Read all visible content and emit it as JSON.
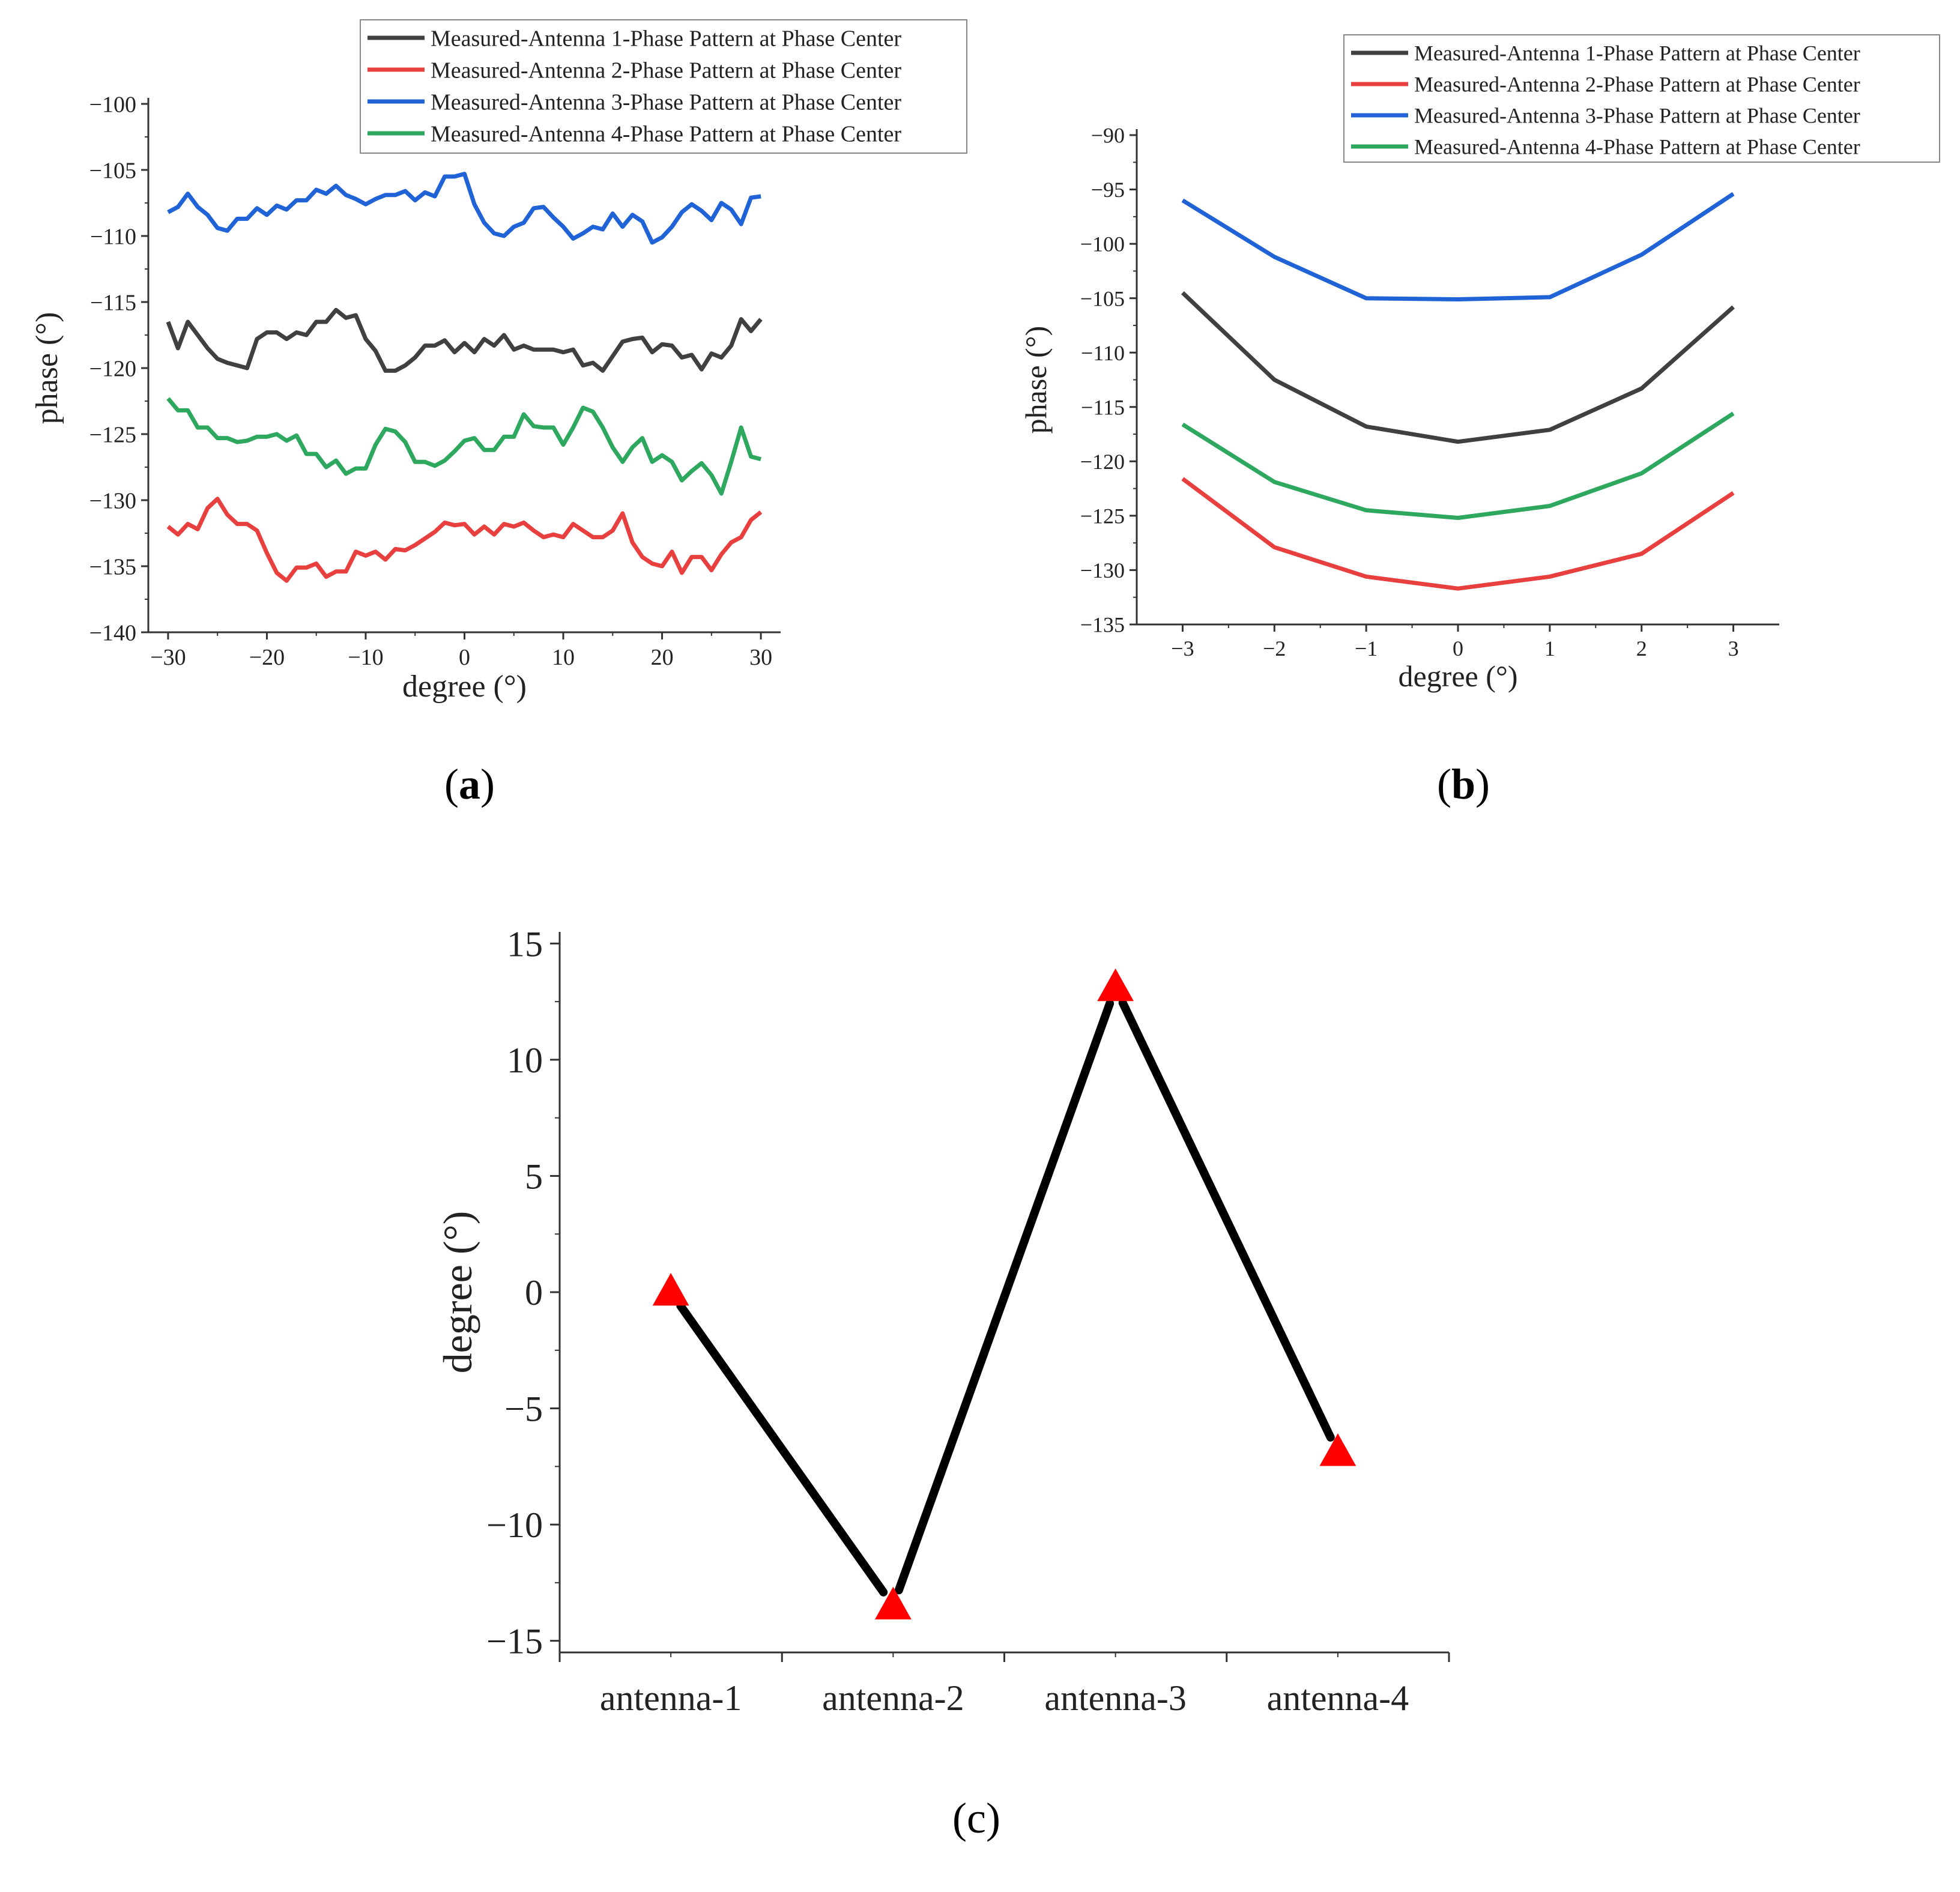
{
  "panel_labels": {
    "a": "a",
    "b": "b",
    "c": "c"
  },
  "colors": {
    "antenna1": "#404040",
    "antenna2": "#e8403f",
    "antenna3": "#1f63d6",
    "antenna4": "#2ea85e",
    "marker": "#ff0000",
    "line_c": "#000000"
  },
  "chart_data": [
    {
      "id": "a",
      "type": "line",
      "title": "",
      "xlabel": "degree (°)",
      "ylabel": "phase (°)",
      "xlim": [
        -32,
        32
      ],
      "ylim": [
        -140,
        -100
      ],
      "xticks": [
        -30,
        -20,
        -10,
        0,
        10,
        20,
        30
      ],
      "xtick_labels": [
        "−30",
        "−20",
        "−10",
        "0",
        "10",
        "20",
        "30"
      ],
      "yticks": [
        -100,
        -105,
        -110,
        -115,
        -120,
        -125,
        -130,
        -135,
        -140
      ],
      "ytick_labels": [
        "−100",
        "−105",
        "−110",
        "−115",
        "−120",
        "−125",
        "−130",
        "−135",
        "−140"
      ],
      "legend_position": "top-right",
      "x": [
        -30,
        -29,
        -28,
        -27,
        -26,
        -25,
        -24,
        -23,
        -22,
        -21,
        -20,
        -19,
        -18,
        -17,
        -16,
        -15,
        -14,
        -13,
        -12,
        -11,
        -10,
        -9,
        -8,
        -7,
        -6,
        -5,
        -4,
        -3,
        -2,
        -1,
        0,
        1,
        2,
        3,
        4,
        5,
        6,
        7,
        8,
        9,
        10,
        11,
        12,
        13,
        14,
        15,
        16,
        17,
        18,
        19,
        20,
        21,
        22,
        23,
        24,
        25,
        26,
        27,
        28,
        29,
        30
      ],
      "series": [
        {
          "name": "Measured-Antenna 1-Phase Pattern at Phase Center",
          "color": "#404040",
          "values": [
            -116.5,
            -118.5,
            -116.5,
            -117.5,
            -118.5,
            -119.3,
            -119.6,
            -119.8,
            -120.0,
            -117.8,
            -117.3,
            -117.3,
            -117.8,
            -117.3,
            -117.5,
            -116.5,
            -116.5,
            -115.6,
            -116.2,
            -116.0,
            -117.8,
            -118.7,
            -120.2,
            -120.2,
            -119.8,
            -119.2,
            -118.3,
            -118.3,
            -117.9,
            -118.8,
            -118.1,
            -118.8,
            -117.8,
            -118.3,
            -117.5,
            -118.6,
            -118.3,
            -118.6,
            -118.6,
            -118.6,
            -118.8,
            -118.6,
            -119.8,
            -119.6,
            -120.2,
            -119.1,
            -118.0,
            -117.8,
            -117.7,
            -118.8,
            -118.2,
            -118.3,
            -119.2,
            -119.0,
            -120.1,
            -118.9,
            -119.2,
            -118.3,
            -116.3,
            -117.2,
            -116.3
          ]
        },
        {
          "name": "Measured-Antenna 2-Phase Pattern at Phase Center",
          "color": "#e8403f",
          "values": [
            -132.0,
            -132.6,
            -131.8,
            -132.2,
            -130.6,
            -129.9,
            -131.1,
            -131.8,
            -131.8,
            -132.3,
            -134.0,
            -135.5,
            -136.1,
            -135.1,
            -135.1,
            -134.8,
            -135.8,
            -135.4,
            -135.4,
            -133.9,
            -134.2,
            -133.9,
            -134.5,
            -133.7,
            -133.8,
            -133.4,
            -132.9,
            -132.4,
            -131.7,
            -131.9,
            -131.8,
            -132.6,
            -132.0,
            -132.6,
            -131.8,
            -132.0,
            -131.7,
            -132.3,
            -132.8,
            -132.6,
            -132.8,
            -131.8,
            -132.3,
            -132.8,
            -132.8,
            -132.3,
            -131.0,
            -133.2,
            -134.3,
            -134.8,
            -135.0,
            -133.9,
            -135.5,
            -134.3,
            -134.3,
            -135.3,
            -134.1,
            -133.2,
            -132.8,
            -131.5,
            -130.9
          ]
        },
        {
          "name": "Measured-Antenna 3-Phase Pattern at Phase Center",
          "color": "#1f63d6",
          "values": [
            -108.2,
            -107.8,
            -106.8,
            -107.8,
            -108.4,
            -109.4,
            -109.6,
            -108.7,
            -108.7,
            -107.9,
            -108.4,
            -107.7,
            -108.0,
            -107.3,
            -107.3,
            -106.5,
            -106.8,
            -106.2,
            -106.9,
            -107.2,
            -107.6,
            -107.2,
            -106.9,
            -106.9,
            -106.6,
            -107.3,
            -106.7,
            -107.0,
            -105.5,
            -105.5,
            -105.3,
            -107.6,
            -109.0,
            -109.8,
            -110.0,
            -109.3,
            -109.0,
            -107.9,
            -107.8,
            -108.6,
            -109.3,
            -110.2,
            -109.8,
            -109.3,
            -109.5,
            -108.3,
            -109.3,
            -108.4,
            -108.9,
            -110.5,
            -110.1,
            -109.3,
            -108.2,
            -107.6,
            -108.1,
            -108.8,
            -107.5,
            -108.0,
            -109.1,
            -107.1,
            -107.0
          ]
        },
        {
          "name": "Measured-Antenna 4-Phase Pattern at Phase Center",
          "color": "#2ea85e",
          "values": [
            -122.3,
            -123.2,
            -123.2,
            -124.5,
            -124.5,
            -125.3,
            -125.3,
            -125.6,
            -125.5,
            -125.2,
            -125.2,
            -125.0,
            -125.5,
            -125.1,
            -126.5,
            -126.5,
            -127.5,
            -127.0,
            -128.0,
            -127.6,
            -127.6,
            -125.8,
            -124.6,
            -124.8,
            -125.6,
            -127.1,
            -127.1,
            -127.4,
            -127.0,
            -126.3,
            -125.5,
            -125.3,
            -126.2,
            -126.2,
            -125.2,
            -125.2,
            -123.5,
            -124.4,
            -124.5,
            -124.5,
            -125.8,
            -124.5,
            -123.0,
            -123.3,
            -124.5,
            -126.0,
            -127.1,
            -126.0,
            -125.3,
            -127.1,
            -126.6,
            -127.1,
            -128.5,
            -127.8,
            -127.2,
            -128.1,
            -129.5,
            -127.1,
            -124.5,
            -126.7,
            -126.9
          ]
        }
      ]
    },
    {
      "id": "b",
      "type": "line",
      "title": "",
      "xlabel": "degree (°)",
      "ylabel": "phase (°)",
      "xlim": [
        -3.5,
        3.5
      ],
      "ylim": [
        -135,
        -90
      ],
      "xticks": [
        -3,
        -2,
        -1,
        0,
        1,
        2,
        3
      ],
      "xtick_labels": [
        "−3",
        "−2",
        "−1",
        "0",
        "1",
        "2",
        "3"
      ],
      "yticks": [
        -90,
        -95,
        -100,
        -105,
        -110,
        -115,
        -120,
        -125,
        -130,
        -135
      ],
      "ytick_labels": [
        "−90",
        "−95",
        "−100",
        "−105",
        "−110",
        "−115",
        "−120",
        "−125",
        "−130",
        "−135"
      ],
      "legend_position": "top-right",
      "x": [
        -3,
        -2,
        -1,
        0,
        1,
        2,
        3
      ],
      "series": [
        {
          "name": "Measured-Antenna 1-Phase Pattern at Phase Center",
          "color": "#404040",
          "values": [
            -104.5,
            -112.5,
            -116.8,
            -118.2,
            -117.1,
            -113.3,
            -105.8
          ]
        },
        {
          "name": "Measured-Antenna 2-Phase Pattern at Phase Center",
          "color": "#e8403f",
          "values": [
            -121.6,
            -127.9,
            -130.6,
            -131.7,
            -130.6,
            -128.5,
            -122.9
          ]
        },
        {
          "name": "Measured-Antenna 3-Phase Pattern at Phase Center",
          "color": "#1f63d6",
          "values": [
            -96.0,
            -101.2,
            -105.0,
            -105.1,
            -104.9,
            -101.0,
            -95.4
          ]
        },
        {
          "name": "Measured-Antenna 4-Phase Pattern at Phase Center",
          "color": "#2ea85e",
          "values": [
            -116.6,
            -121.9,
            -124.5,
            -125.2,
            -124.1,
            -121.1,
            -115.6
          ]
        }
      ]
    },
    {
      "id": "c",
      "type": "line",
      "title": "",
      "xlabel": "",
      "ylabel": "degree (°)",
      "categories": [
        "antenna-1",
        "antenna-2",
        "antenna-3",
        "antenna-4"
      ],
      "ylim": [
        -15.5,
        15.5
      ],
      "yticks": [
        15,
        10,
        5,
        0,
        -5,
        -10,
        -15
      ],
      "ytick_labels": [
        "15",
        "10",
        "5",
        "0",
        "−5",
        "−10",
        "−15"
      ],
      "series": [
        {
          "name": "degree",
          "color": "#000000",
          "marker": "triangle",
          "marker_color": "#ff0000",
          "values": [
            0,
            -13.5,
            13.1,
            -6.9
          ]
        }
      ]
    }
  ]
}
